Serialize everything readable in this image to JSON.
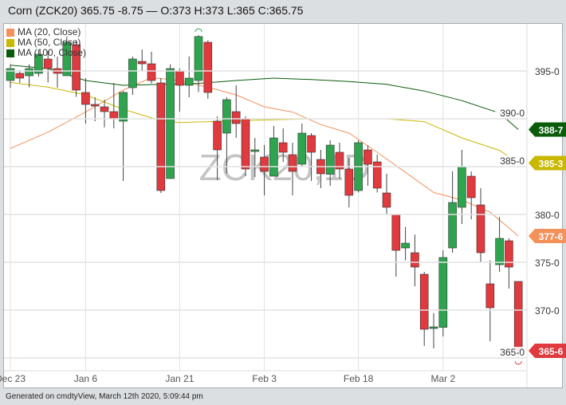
{
  "header": {
    "title": "Corn (ZCK20) 365.75 -8.75 — O:373 H:373 L:365 C:365.75"
  },
  "footer": {
    "text": "Generated on cmdtyView, March 12th 2020, 5:09:44 pm"
  },
  "watermark": "ZCK20,1D",
  "colors": {
    "up": "#2ea44f",
    "down": "#e0393e",
    "ma20": "#f4905a",
    "ma50": "#c9b800",
    "ma100": "#0a5c0a",
    "grid": "#e2e2e2"
  },
  "chart_data": {
    "type": "candlestick",
    "ylim": [
      364.5,
      399.5
    ],
    "yticks": [
      365,
      370,
      375,
      380,
      385,
      390,
      395
    ],
    "ytick_labels": [
      "365-0",
      "370-0",
      "375-0",
      "380-0",
      "385-0",
      "390-0",
      "395-0"
    ],
    "xtick_labels": [
      {
        "date": "2019-12-23",
        "label": "Dec 23"
      },
      {
        "date": "2020-01-06",
        "label": "Jan 6"
      },
      {
        "date": "2020-01-21",
        "label": "Jan 21"
      },
      {
        "date": "2020-02-03",
        "label": "Feb 3"
      },
      {
        "date": "2020-02-18",
        "label": "Feb 18"
      },
      {
        "date": "2020-03-02",
        "label": "Mar 2"
      }
    ],
    "grid": true,
    "legend_placement": "top-left",
    "legend": [
      "MA (20, Close)",
      "MA (50, Close)",
      "MA (100, Close)"
    ],
    "candles": [
      {
        "date": "2019-12-23",
        "o": 394,
        "h": 395.7,
        "l": 393.25,
        "c": 395.25
      },
      {
        "date": "2019-12-24",
        "o": 394.75,
        "h": 395,
        "l": 393.75,
        "c": 394.25
      },
      {
        "date": "2019-12-26",
        "o": 394.5,
        "h": 395.7,
        "l": 393.3,
        "c": 395.25
      },
      {
        "date": "2019-12-27",
        "o": 394.75,
        "h": 397.2,
        "l": 394.4,
        "c": 396.75
      },
      {
        "date": "2019-12-30",
        "o": 396.25,
        "h": 397.1,
        "l": 393.8,
        "c": 395.25
      },
      {
        "date": "2019-12-31",
        "o": 395.25,
        "h": 396.5,
        "l": 393.25,
        "c": 394.75
      },
      {
        "date": "2020-01-02",
        "o": 394.5,
        "h": 398.6,
        "l": 394.5,
        "c": 398
      },
      {
        "date": "2020-01-03",
        "o": 397.75,
        "h": 398.2,
        "l": 392.3,
        "c": 393
      },
      {
        "date": "2020-01-06",
        "o": 392.75,
        "h": 394.25,
        "l": 389.5,
        "c": 391.5
      },
      {
        "date": "2020-01-07",
        "o": 391.5,
        "h": 392.25,
        "l": 389.75,
        "c": 391.4
      },
      {
        "date": "2020-01-08",
        "o": 391.25,
        "h": 392,
        "l": 389.1,
        "c": 390.75
      },
      {
        "date": "2020-01-09",
        "o": 390.75,
        "h": 393.75,
        "l": 389,
        "c": 390
      },
      {
        "date": "2020-01-10",
        "o": 389.75,
        "h": 392.9,
        "l": 383.5,
        "c": 392.75
      },
      {
        "date": "2020-01-13",
        "o": 393.25,
        "h": 396.5,
        "l": 392.5,
        "c": 396.25
      },
      {
        "date": "2020-01-14",
        "o": 396,
        "h": 397.25,
        "l": 395,
        "c": 395.75
      },
      {
        "date": "2020-01-15",
        "o": 395.75,
        "h": 397,
        "l": 393.7,
        "c": 394
      },
      {
        "date": "2020-01-16",
        "o": 393.75,
        "h": 394.25,
        "l": 382.25,
        "c": 382.5
      },
      {
        "date": "2020-01-17",
        "o": 383.75,
        "h": 395.7,
        "l": 383.75,
        "c": 395.25
      },
      {
        "date": "2020-01-21",
        "o": 395,
        "h": 395.25,
        "l": 390.75,
        "c": 393.5
      },
      {
        "date": "2020-01-22",
        "o": 393.5,
        "h": 396.5,
        "l": 392.25,
        "c": 394.25
      },
      {
        "date": "2020-01-23",
        "o": 394,
        "h": 398.75,
        "l": 392.8,
        "c": 398.6
      },
      {
        "date": "2020-01-24",
        "o": 398,
        "h": 398.2,
        "l": 392.1,
        "c": 392.75
      },
      {
        "date": "2020-01-27",
        "o": 389.75,
        "h": 390.25,
        "l": 383.6,
        "c": 386.75
      },
      {
        "date": "2020-01-28",
        "o": 388.5,
        "h": 392.25,
        "l": 384.3,
        "c": 392
      },
      {
        "date": "2020-01-29",
        "o": 390.75,
        "h": 393.5,
        "l": 388,
        "c": 389.5
      },
      {
        "date": "2020-01-30",
        "o": 390,
        "h": 390.25,
        "l": 384,
        "c": 384.75
      },
      {
        "date": "2020-01-31",
        "o": 386.6,
        "h": 388,
        "l": 383.9,
        "c": 386.75
      },
      {
        "date": "2020-02-03",
        "o": 386,
        "h": 387.25,
        "l": 382,
        "c": 384.5
      },
      {
        "date": "2020-02-04",
        "o": 384,
        "h": 389.25,
        "l": 384,
        "c": 388
      },
      {
        "date": "2020-02-05",
        "o": 387.5,
        "h": 389,
        "l": 385.5,
        "c": 386.5
      },
      {
        "date": "2020-02-06",
        "o": 386.25,
        "h": 387.5,
        "l": 382,
        "c": 384.5
      },
      {
        "date": "2020-02-07",
        "o": 385.25,
        "h": 389.5,
        "l": 385,
        "c": 388.5
      },
      {
        "date": "2020-02-10",
        "o": 388.25,
        "h": 388.5,
        "l": 383.5,
        "c": 386.5
      },
      {
        "date": "2020-02-11",
        "o": 385.75,
        "h": 386.75,
        "l": 382.75,
        "c": 384.25
      },
      {
        "date": "2020-02-12",
        "o": 384.2,
        "h": 387.75,
        "l": 383,
        "c": 387.25
      },
      {
        "date": "2020-02-13",
        "o": 386.5,
        "h": 387.5,
        "l": 383.75,
        "c": 384.75
      },
      {
        "date": "2020-02-14",
        "o": 384.75,
        "h": 385.9,
        "l": 380.75,
        "c": 382
      },
      {
        "date": "2020-02-18",
        "o": 382.5,
        "h": 387.75,
        "l": 382.3,
        "c": 387.5
      },
      {
        "date": "2020-02-19",
        "o": 386.75,
        "h": 387.25,
        "l": 383,
        "c": 385.25
      },
      {
        "date": "2020-02-20",
        "o": 385.5,
        "h": 386.25,
        "l": 382.3,
        "c": 382.75
      },
      {
        "date": "2020-02-21",
        "o": 382.25,
        "h": 384.25,
        "l": 380,
        "c": 380.75
      },
      {
        "date": "2020-02-24",
        "o": 380,
        "h": 380,
        "l": 373.5,
        "c": 376.25
      },
      {
        "date": "2020-02-25",
        "o": 376.5,
        "h": 378.7,
        "l": 375.2,
        "c": 377
      },
      {
        "date": "2020-02-26",
        "o": 376,
        "h": 377.9,
        "l": 372.5,
        "c": 374.5
      },
      {
        "date": "2020-02-27",
        "o": 373.75,
        "h": 374,
        "l": 366.25,
        "c": 368
      },
      {
        "date": "2020-02-28",
        "o": 368.1,
        "h": 369.7,
        "l": 366,
        "c": 368.25
      },
      {
        "date": "2020-03-02",
        "o": 368.2,
        "h": 376.25,
        "l": 367.25,
        "c": 375.5
      },
      {
        "date": "2020-03-03",
        "o": 376.5,
        "h": 384.5,
        "l": 376,
        "c": 381.25
      },
      {
        "date": "2020-03-04",
        "o": 380.75,
        "h": 386.75,
        "l": 379,
        "c": 385
      },
      {
        "date": "2020-03-05",
        "o": 384,
        "h": 384.5,
        "l": 379.5,
        "c": 381.75
      },
      {
        "date": "2020-03-06",
        "o": 381,
        "h": 382.75,
        "l": 375,
        "c": 376
      },
      {
        "date": "2020-03-09",
        "o": 372.75,
        "h": 375.2,
        "l": 366.75,
        "c": 370.25
      },
      {
        "date": "2020-03-10",
        "o": 374.75,
        "h": 379.75,
        "l": 374,
        "c": 377.5
      },
      {
        "date": "2020-03-11",
        "o": 377.25,
        "h": 377.5,
        "l": 372.25,
        "c": 374.5
      },
      {
        "date": "2020-03-12",
        "o": 373,
        "h": 373,
        "l": 365,
        "c": 365.75
      }
    ],
    "series": [
      {
        "name": "MA (20, Close)",
        "last_label": "377-6",
        "values": [
          {
            "date": "2019-12-23",
            "v": 386.9
          },
          {
            "date": "2019-12-30",
            "v": 388.6
          },
          {
            "date": "2020-01-06",
            "v": 390.7
          },
          {
            "date": "2020-01-10",
            "v": 393
          },
          {
            "date": "2020-01-15",
            "v": 394.3
          },
          {
            "date": "2020-01-21",
            "v": 394
          },
          {
            "date": "2020-01-24",
            "v": 393.3
          },
          {
            "date": "2020-01-29",
            "v": 392.5
          },
          {
            "date": "2020-02-03",
            "v": 391.25
          },
          {
            "date": "2020-02-06",
            "v": 390.7
          },
          {
            "date": "2020-02-11",
            "v": 389.4
          },
          {
            "date": "2020-02-14",
            "v": 388.5
          },
          {
            "date": "2020-02-20",
            "v": 386.5
          },
          {
            "date": "2020-02-25",
            "v": 384.4
          },
          {
            "date": "2020-02-28",
            "v": 382.3
          },
          {
            "date": "2020-03-04",
            "v": 381.5
          },
          {
            "date": "2020-03-09",
            "v": 380.25
          },
          {
            "date": "2020-03-12",
            "v": 377.75
          }
        ]
      },
      {
        "name": "MA (50, Close)",
        "last_label": "385-3",
        "values": [
          {
            "date": "2019-12-23",
            "v": 393.8
          },
          {
            "date": "2019-12-30",
            "v": 393.3
          },
          {
            "date": "2020-01-06",
            "v": 392.5
          },
          {
            "date": "2020-01-10",
            "v": 391
          },
          {
            "date": "2020-01-16",
            "v": 389.8
          },
          {
            "date": "2020-01-21",
            "v": 389.6
          },
          {
            "date": "2020-01-29",
            "v": 389.8
          },
          {
            "date": "2020-02-10",
            "v": 390
          },
          {
            "date": "2020-02-21",
            "v": 390
          },
          {
            "date": "2020-02-27",
            "v": 389.7
          },
          {
            "date": "2020-03-04",
            "v": 388
          },
          {
            "date": "2020-03-10",
            "v": 386.7
          },
          {
            "date": "2020-03-12",
            "v": 385.375
          }
        ]
      },
      {
        "name": "MA (100, Close)",
        "last_label": "388-7",
        "values": [
          {
            "date": "2019-12-23",
            "v": 395.6
          },
          {
            "date": "2019-12-30",
            "v": 395.25
          },
          {
            "date": "2020-01-06",
            "v": 394
          },
          {
            "date": "2020-01-10",
            "v": 393.5
          },
          {
            "date": "2020-01-23",
            "v": 393.7
          },
          {
            "date": "2020-01-29",
            "v": 394
          },
          {
            "date": "2020-02-04",
            "v": 394.25
          },
          {
            "date": "2020-02-10",
            "v": 394.1
          },
          {
            "date": "2020-02-14",
            "v": 393.9
          },
          {
            "date": "2020-02-21",
            "v": 393.6
          },
          {
            "date": "2020-02-27",
            "v": 392.9
          },
          {
            "date": "2020-03-04",
            "v": 391.9
          },
          {
            "date": "2020-03-10",
            "v": 390.6
          },
          {
            "date": "2020-03-12",
            "v": 388.875
          }
        ]
      }
    ],
    "last_price_label": "365-6"
  }
}
